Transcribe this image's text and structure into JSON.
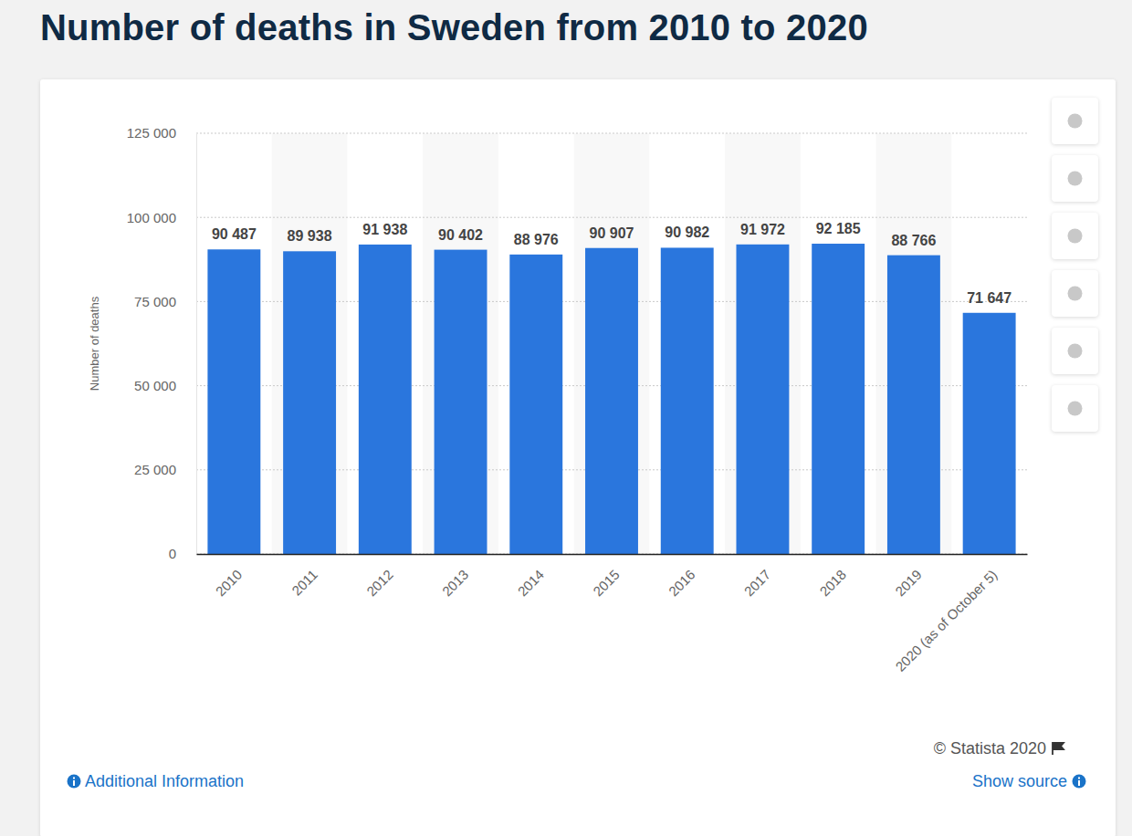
{
  "chart_data": {
    "type": "bar",
    "title": "Number of deaths in Sweden from 2010 to 2020",
    "y_label": "Number of deaths",
    "categories": [
      "2010",
      "2011",
      "2012",
      "2013",
      "2014",
      "2015",
      "2016",
      "2017",
      "2018",
      "2019",
      "2020 (as of October 5)"
    ],
    "values": [
      90487,
      89938,
      91938,
      90402,
      88976,
      90907,
      90982,
      91972,
      92185,
      88766,
      71647
    ],
    "value_labels": [
      "90 487",
      "89 938",
      "91 938",
      "90 402",
      "88 976",
      "90 907",
      "90 982",
      "91 972",
      "92 185",
      "88 766",
      "71 647"
    ],
    "color": "#2a76dd",
    "ylim": [
      0,
      125000
    ],
    "yticks": [
      0,
      {
        "value": 25000,
        "label": "25 000"
      },
      {
        "value": 50000,
        "label": "50 000"
      },
      {
        "value": 75000,
        "label": "75 000"
      },
      {
        "value": 100000,
        "label": "100 000"
      },
      {
        "value": 125000,
        "label": "125 000"
      }
    ],
    "grid": true,
    "data_labels": true
  },
  "footer": {
    "copyright": "© Statista 2020",
    "additional_info": "Additional Information",
    "show_source": "Show source"
  }
}
